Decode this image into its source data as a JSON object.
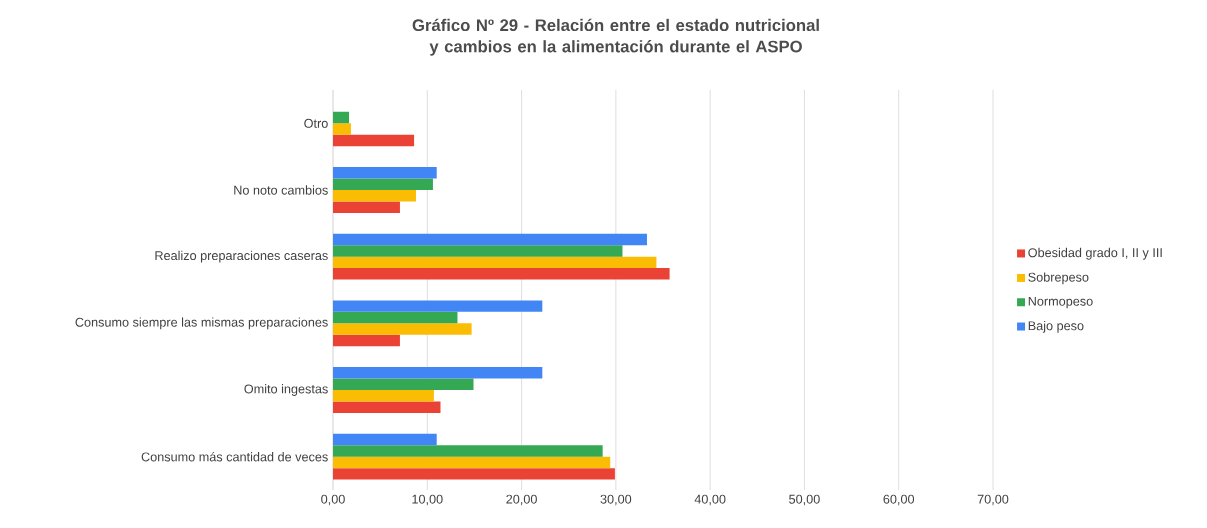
{
  "chart_data": {
    "type": "bar",
    "orientation": "horizontal",
    "title": "Gráfico Nº 29 - Relación entre el estado nutricional y cambios en la alimentación durante el ASPO",
    "categories": [
      "Otro",
      "No noto cambios",
      "Realizo preparaciones caseras",
      "Consumo siempre las mismas preparaciones",
      "Omito ingestas",
      "Consumo más cantidad de veces"
    ],
    "series": [
      {
        "name": "Obesidad grado I, II y III",
        "color": "#ea4335",
        "values": [
          8.6,
          7.1,
          35.7,
          7.1,
          11.4,
          29.9
        ]
      },
      {
        "name": "Sobrepeso",
        "color": "#fbbc04",
        "values": [
          1.9,
          8.8,
          34.3,
          14.7,
          10.7,
          29.4
        ]
      },
      {
        "name": "Normopeso",
        "color": "#34a853",
        "values": [
          1.7,
          10.6,
          30.7,
          13.2,
          14.9,
          28.6
        ]
      },
      {
        "name": "Bajo peso",
        "color": "#4285f4",
        "values": [
          null,
          11.0,
          33.3,
          22.2,
          22.2,
          11.0
        ]
      }
    ],
    "xlim": [
      0,
      70
    ],
    "xticks": [
      {
        "value": 0,
        "label": "0,00"
      },
      {
        "value": 10,
        "label": "10,00"
      },
      {
        "value": 20,
        "label": "20,00"
      },
      {
        "value": 30,
        "label": "30,00"
      },
      {
        "value": 40,
        "label": "40,00"
      },
      {
        "value": 50,
        "label": "50,00"
      },
      {
        "value": 60,
        "label": "60,00"
      },
      {
        "value": 70,
        "label": "70,00"
      }
    ],
    "grid": "x",
    "legend": "right"
  }
}
